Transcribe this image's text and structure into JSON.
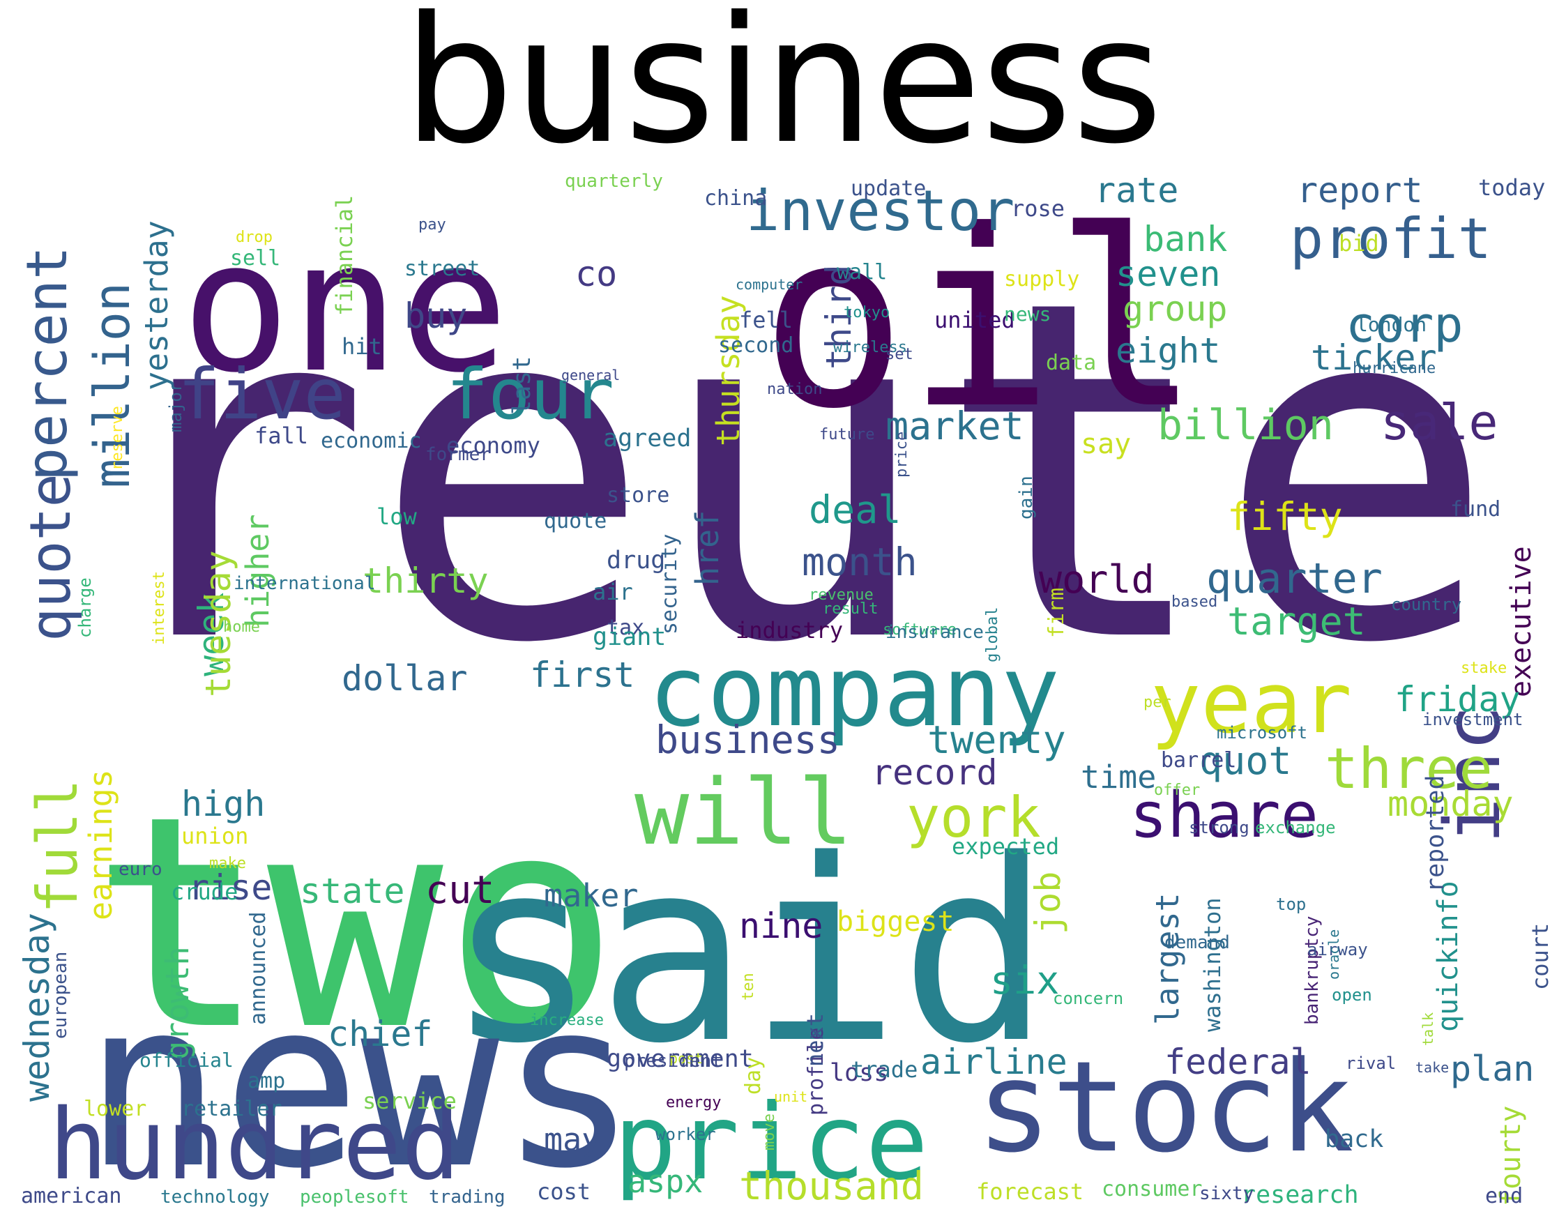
{
  "title": "business",
  "words": [
    {
      "text": "reuters",
      "size": 670,
      "color": "#47256f"
    },
    {
      "text": "two",
      "size": 420,
      "color": "#3ec46c"
    },
    {
      "text": "said",
      "size": 360,
      "color": "#27818e"
    },
    {
      "text": "news",
      "size": 330,
      "color": "#3b528b"
    },
    {
      "text": "one",
      "size": 260,
      "color": "#47116a"
    },
    {
      "text": "oil",
      "size": 350,
      "color": "#440154"
    },
    {
      "text": "stock",
      "size": 180,
      "color": "#3d4e8a"
    },
    {
      "text": "price",
      "size": 150,
      "color": "#21a585"
    },
    {
      "text": "hundred",
      "size": 140,
      "color": "#3f4889"
    },
    {
      "text": "company",
      "size": 140,
      "color": "#228a8d"
    },
    {
      "text": "year",
      "size": 120,
      "color": "#d0e11c"
    },
    {
      "text": "will",
      "size": 130,
      "color": "#63cb5f"
    },
    {
      "text": "share",
      "size": 90,
      "color": "#3b0f70"
    },
    {
      "text": "inc",
      "size": 110,
      "color": "#433e85"
    },
    {
      "text": "five",
      "size": 100,
      "color": "#404387"
    },
    {
      "text": "four",
      "size": 100,
      "color": "#24878e"
    },
    {
      "text": "profit",
      "size": 80,
      "color": "#355f8d"
    },
    {
      "text": "investor",
      "size": 80,
      "color": "#306a8e"
    },
    {
      "text": "quote",
      "size": 80,
      "color": "#3b528b"
    },
    {
      "text": "percent",
      "size": 80,
      "color": "#38598c"
    },
    {
      "text": "full",
      "size": 80,
      "color": "#a0da39"
    },
    {
      "text": "three",
      "size": 80,
      "color": "#9fda3a"
    },
    {
      "text": "york",
      "size": 80,
      "color": "#b5de2b"
    },
    {
      "text": "million",
      "size": 70,
      "color": "#33638d"
    },
    {
      "text": "sale",
      "size": 70,
      "color": "#482878"
    },
    {
      "text": "corp",
      "size": 70,
      "color": "#2d708e"
    },
    {
      "text": "rate",
      "size": 50,
      "color": "#2a788e"
    },
    {
      "text": "report",
      "size": 50,
      "color": "#355f8d"
    },
    {
      "text": "today",
      "size": 32,
      "color": "#3b528b"
    },
    {
      "text": "bank",
      "size": 50,
      "color": "#3bbb75"
    },
    {
      "text": "seven",
      "size": 50,
      "color": "#21918c"
    },
    {
      "text": "group",
      "size": 50,
      "color": "#7ad151"
    },
    {
      "text": "eight",
      "size": 50,
      "color": "#2a788e"
    },
    {
      "text": "ticker",
      "size": 50,
      "color": "#2c728e"
    },
    {
      "text": "billion",
      "size": 60,
      "color": "#5ec962"
    },
    {
      "text": "market",
      "size": 55,
      "color": "#2c728e"
    },
    {
      "text": "say",
      "size": 40,
      "color": "#c8e020"
    },
    {
      "text": "fifty",
      "size": 55,
      "color": "#dde318"
    },
    {
      "text": "quarter",
      "size": 60,
      "color": "#31688e"
    },
    {
      "text": "target",
      "size": 55,
      "color": "#3dbc74"
    },
    {
      "text": "executive",
      "size": 40,
      "color": "#440154"
    },
    {
      "text": "friday",
      "size": 50,
      "color": "#20a386"
    },
    {
      "text": "monday",
      "size": 50,
      "color": "#a8db34"
    },
    {
      "text": "plan",
      "size": 50,
      "color": "#306a8e"
    },
    {
      "text": "court",
      "size": 32,
      "color": "#3b528b"
    },
    {
      "text": "fourty",
      "size": 40,
      "color": "#a5db36"
    },
    {
      "text": "end",
      "size": 30,
      "color": "#3e4989"
    },
    {
      "text": "research",
      "size": 35,
      "color": "#2eb37c"
    },
    {
      "text": "back",
      "size": 35,
      "color": "#306a8e"
    },
    {
      "text": "twenty",
      "size": 55,
      "color": "#26828e"
    },
    {
      "text": "quot",
      "size": 55,
      "color": "#29798e"
    },
    {
      "text": "time",
      "size": 45,
      "color": "#2e6f8e"
    },
    {
      "text": "record",
      "size": 50,
      "color": "#46327e"
    },
    {
      "text": "business",
      "size": 55,
      "color": "#3e4989"
    },
    {
      "text": "deal",
      "size": 55,
      "color": "#1f988b"
    },
    {
      "text": "month",
      "size": 55,
      "color": "#3b528b"
    },
    {
      "text": "world",
      "size": 55,
      "color": "#440154"
    },
    {
      "text": "first",
      "size": 50,
      "color": "#2c728e"
    },
    {
      "text": "dollar",
      "size": 50,
      "color": "#31688e"
    },
    {
      "text": "week",
      "size": 50,
      "color": "#2eb37c"
    },
    {
      "text": "thirty",
      "size": 50,
      "color": "#7ad151"
    },
    {
      "text": "tuesday",
      "size": 50,
      "color": "#a5db36"
    },
    {
      "text": "thursday",
      "size": 45,
      "color": "#c5e021"
    },
    {
      "text": "third",
      "size": 50,
      "color": "#3e4989"
    },
    {
      "text": "buy",
      "size": 50,
      "color": "#3f4788"
    },
    {
      "text": "co",
      "size": 50,
      "color": "#443a83"
    },
    {
      "text": "yesterday",
      "size": 45,
      "color": "#2d708e"
    },
    {
      "text": "higher",
      "size": 45,
      "color": "#5ec962"
    },
    {
      "text": "href",
      "size": 45,
      "color": "#33638d"
    },
    {
      "text": "wednesday",
      "size": 50,
      "color": "#2c728e"
    },
    {
      "text": "earnings",
      "size": 45,
      "color": "#dde318"
    },
    {
      "text": "growth",
      "size": 45,
      "color": "#3dbc74"
    },
    {
      "text": "high",
      "size": 50,
      "color": "#2a788e"
    },
    {
      "text": "rise",
      "size": 50,
      "color": "#3e4a89"
    },
    {
      "text": "state",
      "size": 50,
      "color": "#37b878"
    },
    {
      "text": "cut",
      "size": 55,
      "color": "#440154"
    },
    {
      "text": "maker",
      "size": 45,
      "color": "#31688e"
    },
    {
      "text": "chief",
      "size": 50,
      "color": "#2a788e"
    },
    {
      "text": "nine",
      "size": 50,
      "color": "#3b0f70"
    },
    {
      "text": "biggest",
      "size": 40,
      "color": "#dde318"
    },
    {
      "text": "six",
      "size": 55,
      "color": "#1f9f88"
    },
    {
      "text": "job",
      "size": 50,
      "color": "#addc30"
    },
    {
      "text": "largest",
      "size": 45,
      "color": "#31688e"
    },
    {
      "text": "quickinfo",
      "size": 40,
      "color": "#21918c"
    },
    {
      "text": "reported",
      "size": 35,
      "color": "#3b528b"
    },
    {
      "text": "washington",
      "size": 32,
      "color": "#2e6f8e"
    },
    {
      "text": "bankruptcy",
      "size": 26,
      "color": "#482475"
    },
    {
      "text": "airline",
      "size": 50,
      "color": "#287c8e"
    },
    {
      "text": "federal",
      "size": 50,
      "color": "#433e85"
    },
    {
      "text": "thousand",
      "size": 55,
      "color": "#b5de2b"
    },
    {
      "text": "aspx",
      "size": 45,
      "color": "#35b779"
    },
    {
      "text": "may",
      "size": 45,
      "color": "#3b528b"
    },
    {
      "text": "government",
      "size": 35,
      "color": "#3e4a89"
    },
    {
      "text": "loss",
      "size": 35,
      "color": "#453882"
    },
    {
      "text": "profile",
      "size": 30,
      "color": "#443a83"
    },
    {
      "text": "announced",
      "size": 30,
      "color": "#31688e"
    },
    {
      "text": "amp",
      "size": 30,
      "color": "#2c728e"
    },
    {
      "text": "lower",
      "size": 30,
      "color": "#c2df23"
    },
    {
      "text": "retailer",
      "size": 30,
      "color": "#2c728e"
    },
    {
      "text": "service",
      "size": 32,
      "color": "#7ad151"
    },
    {
      "text": "american",
      "size": 30,
      "color": "#3e4a89"
    },
    {
      "text": "technology",
      "size": 26,
      "color": "#2a788e"
    },
    {
      "text": "peoplesoft",
      "size": 26,
      "color": "#4ac16d"
    },
    {
      "text": "trading",
      "size": 26,
      "color": "#33638d"
    },
    {
      "text": "cost",
      "size": 32,
      "color": "#3b528b"
    },
    {
      "text": "forecast",
      "size": 32,
      "color": "#bddf26"
    },
    {
      "text": "consumer",
      "size": 30,
      "color": "#5ec962"
    },
    {
      "text": "european",
      "size": 26,
      "color": "#3b528b"
    },
    {
      "text": "euro",
      "size": 26,
      "color": "#3b528b"
    },
    {
      "text": "crude",
      "size": 32,
      "color": "#22a884"
    },
    {
      "text": "union",
      "size": 32,
      "color": "#dde318"
    },
    {
      "text": "official",
      "size": 28,
      "color": "#25848e"
    },
    {
      "text": "make",
      "size": 22,
      "color": "#bddf26"
    },
    {
      "text": "economic",
      "size": 30,
      "color": "#31688e"
    },
    {
      "text": "reserve",
      "size": 22,
      "color": "#fde725"
    },
    {
      "text": "fall",
      "size": 32,
      "color": "#3e4989"
    },
    {
      "text": "economy",
      "size": 32,
      "color": "#3e4989"
    },
    {
      "text": "former",
      "size": 26,
      "color": "#3e4989"
    },
    {
      "text": "agreed",
      "size": 35,
      "color": "#2c728e"
    },
    {
      "text": "store",
      "size": 30,
      "color": "#3b528b"
    },
    {
      "text": "quote",
      "size": 30,
      "color": "#31688e"
    },
    {
      "text": "drug",
      "size": 35,
      "color": "#3b528b"
    },
    {
      "text": "air",
      "size": 32,
      "color": "#2c728e"
    },
    {
      "text": "tax",
      "size": 30,
      "color": "#3e4a89"
    },
    {
      "text": "giant",
      "size": 35,
      "color": "#21918c"
    },
    {
      "text": "security",
      "size": 30,
      "color": "#33638d"
    },
    {
      "text": "industry",
      "size": 32,
      "color": "#440154"
    },
    {
      "text": "revenue",
      "size": 22,
      "color": "#4ac16d"
    },
    {
      "text": "result",
      "size": 22,
      "color": "#35b779"
    },
    {
      "text": "software",
      "size": 22,
      "color": "#35b779"
    },
    {
      "text": "insurance",
      "size": 26,
      "color": "#2c728e"
    },
    {
      "text": "based",
      "size": 22,
      "color": "#3b528b"
    },
    {
      "text": "global",
      "size": 22,
      "color": "#26828e"
    },
    {
      "text": "country",
      "size": 24,
      "color": "#31688e"
    },
    {
      "text": "firm",
      "size": 30,
      "color": "#c2df23"
    },
    {
      "text": "gain",
      "size": 26,
      "color": "#2d708e"
    },
    {
      "text": "fund",
      "size": 30,
      "color": "#3b528b"
    },
    {
      "text": "stake",
      "size": 22,
      "color": "#dde318"
    },
    {
      "text": "investment",
      "size": 24,
      "color": "#3b528b"
    },
    {
      "text": "per",
      "size": 22,
      "color": "#bddf26"
    },
    {
      "text": "microsoft",
      "size": 24,
      "color": "#2c728e"
    },
    {
      "text": "offer",
      "size": 22,
      "color": "#7ad151"
    },
    {
      "text": "barrel",
      "size": 30,
      "color": "#3e4989"
    },
    {
      "text": "strong",
      "size": 24,
      "color": "#3e4989"
    },
    {
      "text": "exchange",
      "size": 24,
      "color": "#35b779"
    },
    {
      "text": "expected",
      "size": 32,
      "color": "#22a884"
    },
    {
      "text": "top",
      "size": 24,
      "color": "#2d708e"
    },
    {
      "text": "airway",
      "size": 24,
      "color": "#3b528b"
    },
    {
      "text": "open",
      "size": 24,
      "color": "#21918c"
    },
    {
      "text": "concern",
      "size": 24,
      "color": "#35b779"
    },
    {
      "text": "oracle",
      "size": 20,
      "color": "#2a788e"
    },
    {
      "text": "rival",
      "size": 24,
      "color": "#3e4989"
    },
    {
      "text": "talk",
      "size": 20,
      "color": "#a0da39"
    },
    {
      "text": "take",
      "size": 20,
      "color": "#3b528b"
    },
    {
      "text": "demand",
      "size": 26,
      "color": "#31688e"
    },
    {
      "text": "sixty",
      "size": 26,
      "color": "#3e4989"
    },
    {
      "text": "next",
      "size": 32,
      "color": "#3b528b"
    },
    {
      "text": "trade",
      "size": 32,
      "color": "#2c728e"
    },
    {
      "text": "move",
      "size": 22,
      "color": "#7ad151"
    },
    {
      "text": "post",
      "size": 20,
      "color": "#bddf26"
    },
    {
      "text": "energy",
      "size": 22,
      "color": "#440154"
    },
    {
      "text": "unit",
      "size": 20,
      "color": "#dde318"
    },
    {
      "text": "worker",
      "size": 24,
      "color": "#2c728e"
    },
    {
      "text": "day",
      "size": 30,
      "color": "#bddf26"
    },
    {
      "text": "increase",
      "size": 22,
      "color": "#29af7f"
    },
    {
      "text": "ten",
      "size": 22,
      "color": "#c2df23"
    },
    {
      "text": "president",
      "size": 26,
      "color": "#3e4a89"
    },
    {
      "text": "international",
      "size": 26,
      "color": "#2c728e"
    },
    {
      "text": "home",
      "size": 22,
      "color": "#7ad151"
    },
    {
      "text": "interest",
      "size": 22,
      "color": "#dde318"
    },
    {
      "text": "charge",
      "size": 24,
      "color": "#35b779"
    },
    {
      "text": "low",
      "size": 32,
      "color": "#22a884"
    },
    {
      "text": "major",
      "size": 24,
      "color": "#33638d"
    },
    {
      "text": "drop",
      "size": 22,
      "color": "#dde318"
    },
    {
      "text": "sell",
      "size": 30,
      "color": "#35b779"
    },
    {
      "text": "pay",
      "size": 22,
      "color": "#3b528b"
    },
    {
      "text": "quarterly",
      "size": 26,
      "color": "#7ad151"
    },
    {
      "text": "street",
      "size": 30,
      "color": "#2a788e"
    },
    {
      "text": "financial",
      "size": 32,
      "color": "#7ad151"
    },
    {
      "text": "last",
      "size": 35,
      "color": "#31688e"
    },
    {
      "text": "hit",
      "size": 32,
      "color": "#31688e"
    },
    {
      "text": "general",
      "size": 20,
      "color": "#3e4989"
    },
    {
      "text": "computer",
      "size": 20,
      "color": "#2c728e"
    },
    {
      "text": "china",
      "size": 30,
      "color": "#3b528b"
    },
    {
      "text": "second",
      "size": 30,
      "color": "#31688e"
    },
    {
      "text": "nation",
      "size": 22,
      "color": "#3e4989"
    },
    {
      "text": "wireless",
      "size": 22,
      "color": "#2a788e"
    },
    {
      "text": "future",
      "size": 22,
      "color": "#3e4989"
    },
    {
      "text": "wall",
      "size": 30,
      "color": "#25848e"
    },
    {
      "text": "tokyo",
      "size": 22,
      "color": "#21918c"
    },
    {
      "text": "set",
      "size": 22,
      "color": "#3e4989"
    },
    {
      "text": "update",
      "size": 30,
      "color": "#3b528b"
    },
    {
      "text": "bid",
      "size": 32,
      "color": "#bddf26"
    },
    {
      "text": "fell",
      "size": 32,
      "color": "#3b528b"
    },
    {
      "text": "rose",
      "size": 32,
      "color": "#3e4989"
    },
    {
      "text": "supply",
      "size": 30,
      "color": "#dde318"
    },
    {
      "text": "united",
      "size": 32,
      "color": "#3b0f70"
    },
    {
      "text": "news",
      "size": 28,
      "color": "#35b779"
    },
    {
      "text": "data",
      "size": 30,
      "color": "#7ad151"
    },
    {
      "text": "hurricane",
      "size": 22,
      "color": "#31688e"
    },
    {
      "text": "london",
      "size": 28,
      "color": "#2c728e"
    },
    {
      "text": "price",
      "size": 22,
      "color": "#3b528b"
    }
  ]
}
